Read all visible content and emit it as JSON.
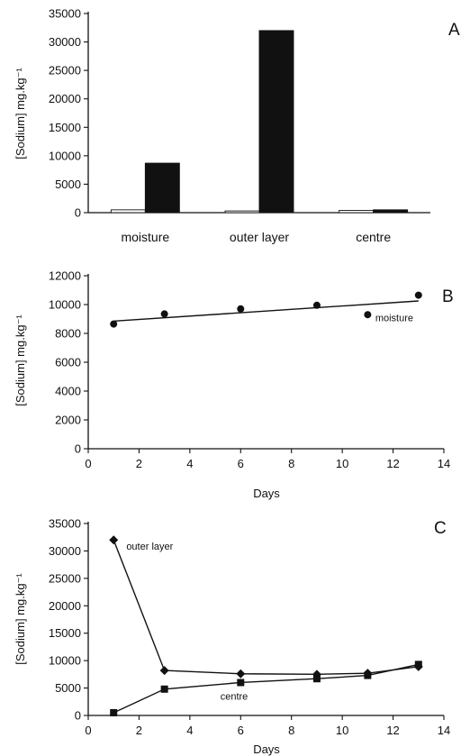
{
  "chart_data": [
    {
      "type": "bar",
      "panel_label": "A",
      "ylabel": "[Sodium] mg.kg⁻¹",
      "xlabel": "",
      "categories": [
        "moisture",
        "outer layer",
        "centre"
      ],
      "series": [
        {
          "values": [
            500,
            300,
            400
          ],
          "color": "#ffffff"
        },
        {
          "values": [
            8700,
            32000,
            500
          ],
          "color": "#111111"
        }
      ],
      "ylim": [
        0,
        35000
      ],
      "yticks": [
        0,
        5000,
        10000,
        15000,
        20000,
        25000,
        30000,
        35000
      ],
      "grid": false
    },
    {
      "type": "scatter",
      "panel_label": "B",
      "ylabel": "[Sodium] mg.kg⁻¹",
      "xlabel": "Days",
      "series": [
        {
          "label": "moisture",
          "marker": "circle",
          "x": [
            1,
            3,
            6,
            9,
            11,
            13
          ],
          "y": [
            8650,
            9350,
            9700,
            9950,
            9300,
            10650
          ],
          "trendline": {
            "x": [
              1,
              13
            ],
            "y": [
              8850,
              10250
            ]
          }
        }
      ],
      "xlim": [
        0,
        14
      ],
      "xticks": [
        0,
        2,
        4,
        6,
        8,
        10,
        12,
        14
      ],
      "ylim": [
        0,
        12000
      ],
      "yticks": [
        0,
        2000,
        4000,
        6000,
        8000,
        10000,
        12000
      ],
      "grid": false
    },
    {
      "type": "line",
      "panel_label": "C",
      "ylabel": "[Sodium] mg.kg⁻¹",
      "xlabel": "Days",
      "series": [
        {
          "label": "outer layer",
          "marker": "diamond",
          "x": [
            1,
            3,
            6,
            9,
            11,
            13
          ],
          "y": [
            32000,
            8200,
            7600,
            7500,
            7700,
            8900
          ]
        },
        {
          "label": "centre",
          "marker": "square",
          "x": [
            1,
            3,
            6,
            9,
            11,
            13
          ],
          "y": [
            500,
            4800,
            6000,
            6700,
            7300,
            9300
          ]
        }
      ],
      "xlim": [
        0,
        14
      ],
      "xticks": [
        0,
        2,
        4,
        6,
        8,
        10,
        12,
        14
      ],
      "ylim": [
        0,
        35000
      ],
      "yticks": [
        0,
        5000,
        10000,
        15000,
        20000,
        25000,
        30000,
        35000
      ],
      "grid": false
    }
  ]
}
